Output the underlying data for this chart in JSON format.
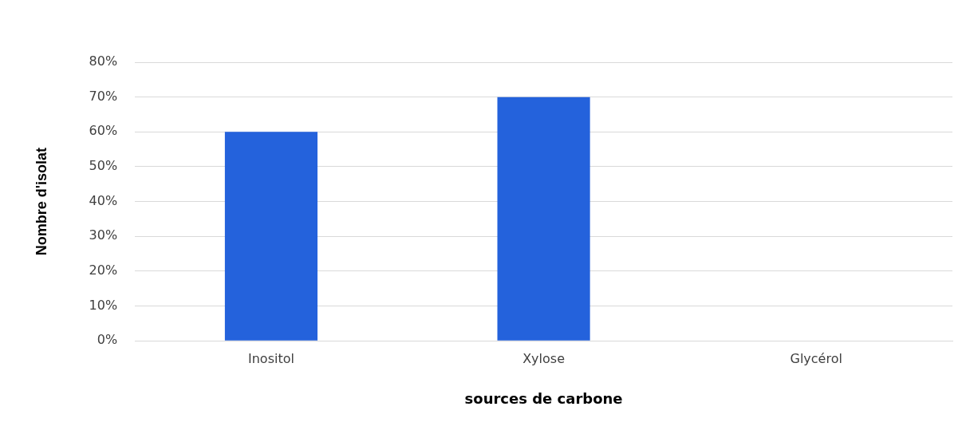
{
  "chart_data": {
    "type": "bar",
    "xlabel": "sources de carbone",
    "ylabel": "Nombre d'isolat",
    "categories": [
      "Inositol",
      "Xylose",
      "Glycérol"
    ],
    "values": [
      60,
      70,
      0
    ],
    "color": "#2462dc",
    "ylim": [
      0,
      80
    ],
    "yticks": [
      {
        "value": 0,
        "label": "0%"
      },
      {
        "value": 10,
        "label": "10%"
      },
      {
        "value": 20,
        "label": "20%"
      },
      {
        "value": 30,
        "label": "30%"
      },
      {
        "value": 40,
        "label": "40%"
      },
      {
        "value": 50,
        "label": "50%"
      },
      {
        "value": 60,
        "label": "60%"
      },
      {
        "value": 70,
        "label": "70%"
      },
      {
        "value": 80,
        "label": "80%"
      }
    ],
    "grid": "y",
    "legend": false
  }
}
